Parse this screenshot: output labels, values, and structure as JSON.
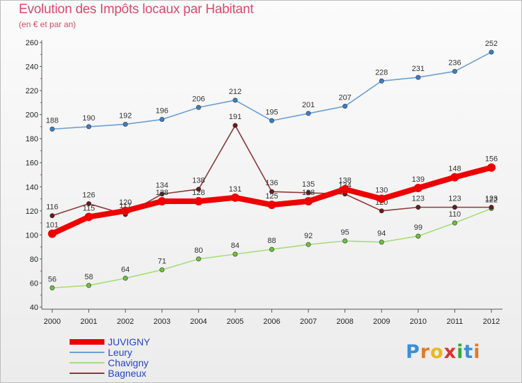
{
  "title": "Evolution des Impôts locaux par Habitant",
  "subtitle": "(en € et par an)",
  "logo": {
    "text": "Proxiti",
    "letters": [
      "P",
      "r",
      "o",
      "x",
      "i",
      "t",
      "i"
    ],
    "colors": [
      "#3a8fd6",
      "#e07a2a",
      "#e8b820",
      "#e03030",
      "#3aa63a",
      "#3a8fd6",
      "#e07a2a"
    ]
  },
  "chart_data": {
    "type": "line",
    "title": "Evolution des Impôts locaux par Habitant",
    "subtitle": "(en € et par an)",
    "xlabel": "",
    "ylabel": "",
    "x": [
      "2000",
      "2001",
      "2002",
      "2003",
      "2004",
      "2005",
      "2006",
      "2007",
      "2008",
      "2009",
      "2010",
      "2011",
      "2012"
    ],
    "ylim": [
      40,
      260
    ],
    "yticks": [
      40,
      60,
      80,
      100,
      120,
      140,
      160,
      180,
      200,
      220,
      240,
      260
    ],
    "grid": false,
    "legend_position": "bottom-left",
    "series": [
      {
        "name": "Leury",
        "color": "#6a9fd4",
        "marker": "#3a7fc6",
        "bold": false,
        "values": [
          188,
          190,
          192,
          196,
          206,
          212,
          195,
          201,
          207,
          228,
          231,
          236,
          252
        ]
      },
      {
        "name": "Chavigny",
        "color": "#a8dc7a",
        "marker": "#6cc23a",
        "bold": false,
        "values": [
          56,
          58,
          64,
          71,
          80,
          84,
          88,
          92,
          95,
          94,
          99,
          110,
          122
        ]
      },
      {
        "name": "Bagneux",
        "color": "#8a3a3a",
        "marker": "#6b1a1a",
        "bold": false,
        "values": [
          116,
          126,
          117,
          134,
          138,
          191,
          136,
          135,
          134,
          120,
          123,
          123,
          123
        ]
      },
      {
        "name": "JUVIGNY",
        "color": "#ee0000",
        "marker": "#ee0000",
        "bold": true,
        "values": [
          101,
          115,
          120,
          128,
          128,
          131,
          125,
          128,
          138,
          130,
          139,
          148,
          156
        ]
      }
    ],
    "legend_order": [
      "JUVIGNY",
      "Leury",
      "Chavigny",
      "Bagneux"
    ]
  }
}
